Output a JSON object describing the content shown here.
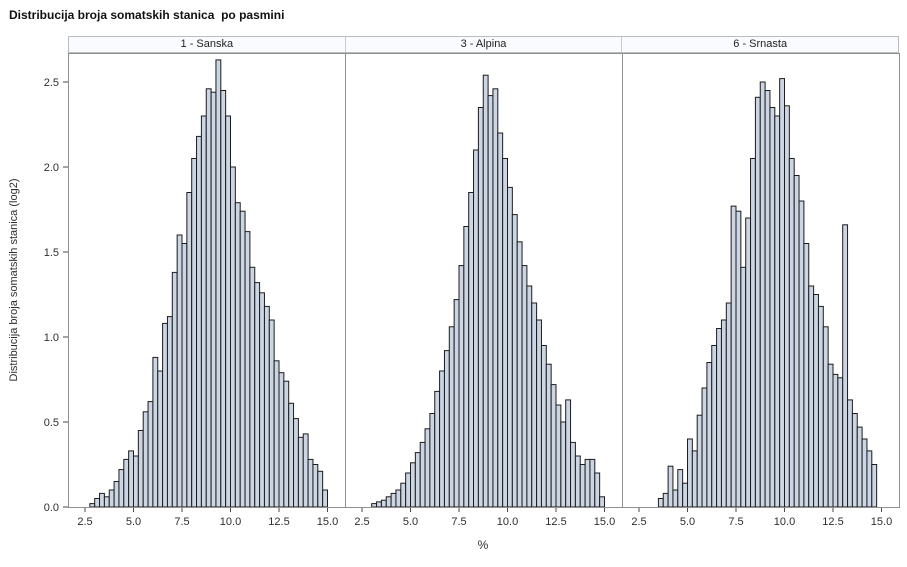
{
  "chart_data": {
    "type": "bar",
    "subtype": "paneled-histogram",
    "title": "Distribucija broja somatskih stanica  po pasmini",
    "xlabel": "%",
    "ylabel": "Distribucija broja somatskih stanica (log2)",
    "grid": false,
    "legend": false,
    "bin_width": 0.25,
    "xticks": [
      "2.5",
      "5.0",
      "7.5",
      "10.0",
      "12.5",
      "15.0"
    ],
    "yticks": [
      "0.0",
      "0.5",
      "1.0",
      "1.5",
      "2.0",
      "2.5"
    ],
    "xlim": [
      1.6,
      15.9
    ],
    "ylim": [
      0,
      2.67
    ],
    "colors": {
      "bar_fill": "#ccd5e3",
      "bar_stroke": "#1c1c1c",
      "frame": "#8f8f8f",
      "tick": "#4a4a4a",
      "text": "#2e2e2e",
      "header_fill": "#fafbfe",
      "header_border": "#b9bdc2"
    },
    "panels": [
      {
        "label": "1 - Sanska",
        "bin_start": 2.875,
        "values": [
          0.02,
          0.05,
          0.08,
          0.06,
          0.1,
          0.15,
          0.22,
          0.28,
          0.33,
          0.3,
          0.45,
          0.56,
          0.62,
          0.88,
          0.8,
          1.08,
          1.12,
          1.38,
          1.6,
          1.55,
          1.85,
          2.05,
          2.18,
          2.3,
          2.46,
          2.44,
          2.63,
          2.45,
          2.3,
          2.0,
          1.79,
          1.74,
          1.62,
          1.41,
          1.32,
          1.26,
          1.18,
          1.1,
          0.86,
          0.79,
          0.74,
          0.61,
          0.52,
          0.41,
          0.43,
          0.28,
          0.25,
          0.21,
          0.1
        ]
      },
      {
        "label": "3 - Alpina",
        "bin_start": 3.125,
        "values": [
          0.02,
          0.03,
          0.04,
          0.06,
          0.08,
          0.1,
          0.14,
          0.2,
          0.26,
          0.32,
          0.38,
          0.46,
          0.55,
          0.68,
          0.8,
          0.92,
          1.06,
          1.22,
          1.42,
          1.65,
          1.85,
          2.1,
          2.35,
          2.54,
          2.42,
          2.46,
          2.2,
          2.05,
          1.88,
          1.72,
          1.56,
          1.42,
          1.3,
          1.2,
          1.1,
          0.95,
          0.84,
          0.72,
          0.6,
          0.5,
          0.63,
          0.38,
          0.3,
          0.25,
          0.28,
          0.28,
          0.2,
          0.06
        ]
      },
      {
        "label": "6 - Srnasta",
        "bin_start": 3.625,
        "values": [
          0.05,
          0.08,
          0.24,
          0.1,
          0.22,
          0.14,
          0.4,
          0.33,
          0.54,
          0.7,
          0.85,
          0.95,
          1.05,
          1.1,
          1.2,
          1.77,
          1.74,
          1.41,
          1.7,
          2.05,
          2.41,
          2.5,
          2.45,
          2.35,
          2.3,
          2.52,
          2.36,
          2.05,
          1.95,
          1.8,
          1.55,
          1.3,
          1.25,
          1.18,
          1.06,
          0.84,
          0.78,
          0.76,
          1.66,
          0.63,
          0.55,
          0.47,
          0.4,
          0.33,
          0.25
        ]
      }
    ]
  }
}
